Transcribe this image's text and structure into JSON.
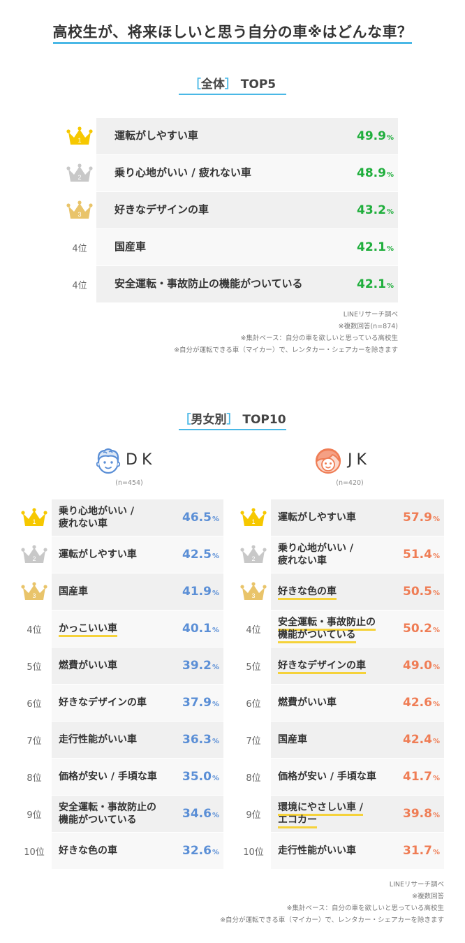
{
  "title": "高校生が、将来ほしいと思う自分の車※はどんな車？",
  "overall": {
    "heading_bracket_open": "［",
    "heading_label": "全体",
    "heading_bracket_close": "］",
    "heading_suffix": "TOP5",
    "rows": [
      {
        "rank": "1",
        "label": "運転がしやすい車",
        "value": "49.9"
      },
      {
        "rank": "2",
        "label": "乗り心地がいい / 疲れない車",
        "value": "48.9"
      },
      {
        "rank": "3",
        "label": "好きなデザインの車",
        "value": "43.2"
      },
      {
        "rank": "4位",
        "label": "国産車",
        "value": "42.1"
      },
      {
        "rank": "4位",
        "label": "安全運転・事故防止の機能がついている",
        "value": "42.1"
      }
    ],
    "notes": [
      "LINEリサーチ調べ",
      "※複数回答(n=874)",
      "※集計ベース：自分の車を欲しいと思っている高校生",
      "※自分が運転できる車（マイカー）で、レンタカー・シェアカーを除きます"
    ]
  },
  "gender": {
    "heading_bracket_open": "［",
    "heading_label": "男女別",
    "heading_bracket_close": "］",
    "heading_suffix": "TOP10",
    "dk": {
      "label": "DK",
      "n": "(n=454)",
      "rows": [
        {
          "rank": "1",
          "label": "乗り心地がいい /\n疲れない車",
          "value": "46.5",
          "hl": false
        },
        {
          "rank": "2",
          "label": "運転がしやすい車",
          "value": "42.5",
          "hl": false
        },
        {
          "rank": "3",
          "label": "国産車",
          "value": "41.9",
          "hl": false
        },
        {
          "rank": "4位",
          "label": "かっこいい車",
          "value": "40.1",
          "hl": true
        },
        {
          "rank": "5位",
          "label": "燃費がいい車",
          "value": "39.2",
          "hl": false
        },
        {
          "rank": "6位",
          "label": "好きなデザインの車",
          "value": "37.9",
          "hl": false
        },
        {
          "rank": "7位",
          "label": "走行性能がいい車",
          "value": "36.3",
          "hl": false
        },
        {
          "rank": "8位",
          "label": "価格が安い / 手頃な車",
          "value": "35.0",
          "hl": false
        },
        {
          "rank": "9位",
          "label": "安全運転・事故防止の\n機能がついている",
          "value": "34.6",
          "hl": false
        },
        {
          "rank": "10位",
          "label": "好きな色の車",
          "value": "32.6",
          "hl": false
        }
      ]
    },
    "jk": {
      "label": "JK",
      "n": "(n=420)",
      "rows": [
        {
          "rank": "1",
          "label": "運転がしやすい車",
          "value": "57.9",
          "hl": false
        },
        {
          "rank": "2",
          "label": "乗り心地がいい /\n疲れない車",
          "value": "51.4",
          "hl": false
        },
        {
          "rank": "3",
          "label": "好きな色の車",
          "value": "50.5",
          "hl": true
        },
        {
          "rank": "4位",
          "label": "安全運転・事故防止の\n機能がついている",
          "value": "50.2",
          "hl": true
        },
        {
          "rank": "5位",
          "label": "好きなデザインの車",
          "value": "49.0",
          "hl": true
        },
        {
          "rank": "6位",
          "label": "燃費がいい車",
          "value": "42.6",
          "hl": false
        },
        {
          "rank": "7位",
          "label": "国産車",
          "value": "42.4",
          "hl": false
        },
        {
          "rank": "8位",
          "label": "価格が安い / 手頃な車",
          "value": "41.7",
          "hl": false
        },
        {
          "rank": "9位",
          "label": "環境にやさしい車 /\nエコカー",
          "value": "39.8",
          "hl": true
        },
        {
          "rank": "10位",
          "label": "走行性能がいい車",
          "value": "31.7",
          "hl": false
        }
      ]
    },
    "notes": [
      "LINEリサーチ調べ",
      "※複数回答",
      "※集計ベース：自分の車を欲しいと思っている高校生",
      "※自分が運転できる車（マイカー）で、レンタカー・シェアカーを除きます"
    ]
  },
  "pct_symbol": "%",
  "colors": {
    "accent": "#4ab8e6",
    "overall": "#1fae3c",
    "dk": "#5b8fd6",
    "jk": "#ef7d55",
    "gold": "#f6c800",
    "silver": "#c8c8c8",
    "bronze": "#e9c46a",
    "highlight": "#f5d23a"
  },
  "chart_data": [
    {
      "type": "table",
      "title": "［全体］TOP5",
      "categories": [
        "運転がしやすい車",
        "乗り心地がいい / 疲れない車",
        "好きなデザインの車",
        "国産車",
        "安全運転・事故防止の機能がついている"
      ],
      "values": [
        49.9,
        48.9,
        43.2,
        42.1,
        42.1
      ],
      "unit": "%"
    },
    {
      "type": "table",
      "title": "［男女別］TOP10 DK (n=454)",
      "categories": [
        "乗り心地がいい / 疲れない車",
        "運転がしやすい車",
        "国産車",
        "かっこいい車",
        "燃費がいい車",
        "好きなデザインの車",
        "走行性能がいい車",
        "価格が安い / 手頃な車",
        "安全運転・事故防止の機能がついている",
        "好きな色の車"
      ],
      "values": [
        46.5,
        42.5,
        41.9,
        40.1,
        39.2,
        37.9,
        36.3,
        35.0,
        34.6,
        32.6
      ],
      "unit": "%"
    },
    {
      "type": "table",
      "title": "［男女別］TOP10 JK (n=420)",
      "categories": [
        "運転がしやすい車",
        "乗り心地がいい / 疲れない車",
        "好きな色の車",
        "安全運転・事故防止の機能がついている",
        "好きなデザインの車",
        "燃費がいい車",
        "国産車",
        "価格が安い / 手頃な車",
        "環境にやさしい車 / エコカー",
        "走行性能がいい車"
      ],
      "values": [
        57.9,
        51.4,
        50.5,
        50.2,
        49.0,
        42.6,
        42.4,
        41.7,
        39.8,
        31.7
      ],
      "unit": "%"
    }
  ]
}
